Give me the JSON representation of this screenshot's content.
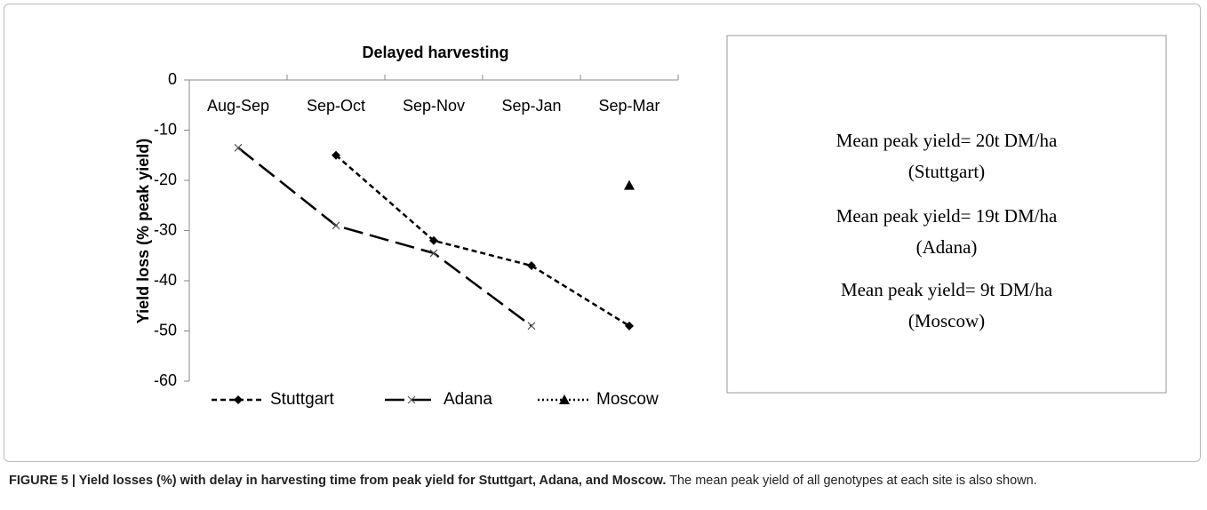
{
  "chart_data": {
    "type": "line",
    "title": "Delayed harvesting",
    "y_label": "Yield loss (% peak yield)",
    "categories": [
      "Aug-Sep",
      "Sep-Oct",
      "Sep-Nov",
      "Sep-Jan",
      "Sep-Mar"
    ],
    "series": [
      {
        "name": "Stuttgart",
        "color": "#000000",
        "line_style": "dashed",
        "marker": "diamond",
        "values": [
          null,
          -15,
          -32,
          -37,
          -49
        ]
      },
      {
        "name": "Adana",
        "color": "#000000",
        "line_style": "longdash",
        "marker": "x",
        "values": [
          -13.5,
          -29,
          -34.5,
          -49,
          null
        ]
      },
      {
        "name": "Moscow",
        "color": "#000000",
        "line_style": "dotted",
        "marker": "triangle",
        "values": [
          null,
          null,
          null,
          null,
          -21
        ]
      }
    ],
    "ylim": [
      -60,
      0
    ],
    "yticks": [
      0,
      -10,
      -20,
      -30,
      -40,
      -50,
      -60
    ],
    "legend": "bottom",
    "annotations": [
      "Mean peak yield= 20t DM/ha",
      "(Stuttgart)",
      "Mean peak yield= 19t DM/ha",
      "(Adana)",
      "Mean peak yield= 9t DM/ha",
      "(Moscow)"
    ]
  },
  "caption": {
    "label": "FIGURE 5 | Yield losses (%) with delay in harvesting time from peak yield for Stuttgart, Adana, and Moscow.",
    "text": "The mean peak yield of all genotypes at each site is also shown."
  }
}
